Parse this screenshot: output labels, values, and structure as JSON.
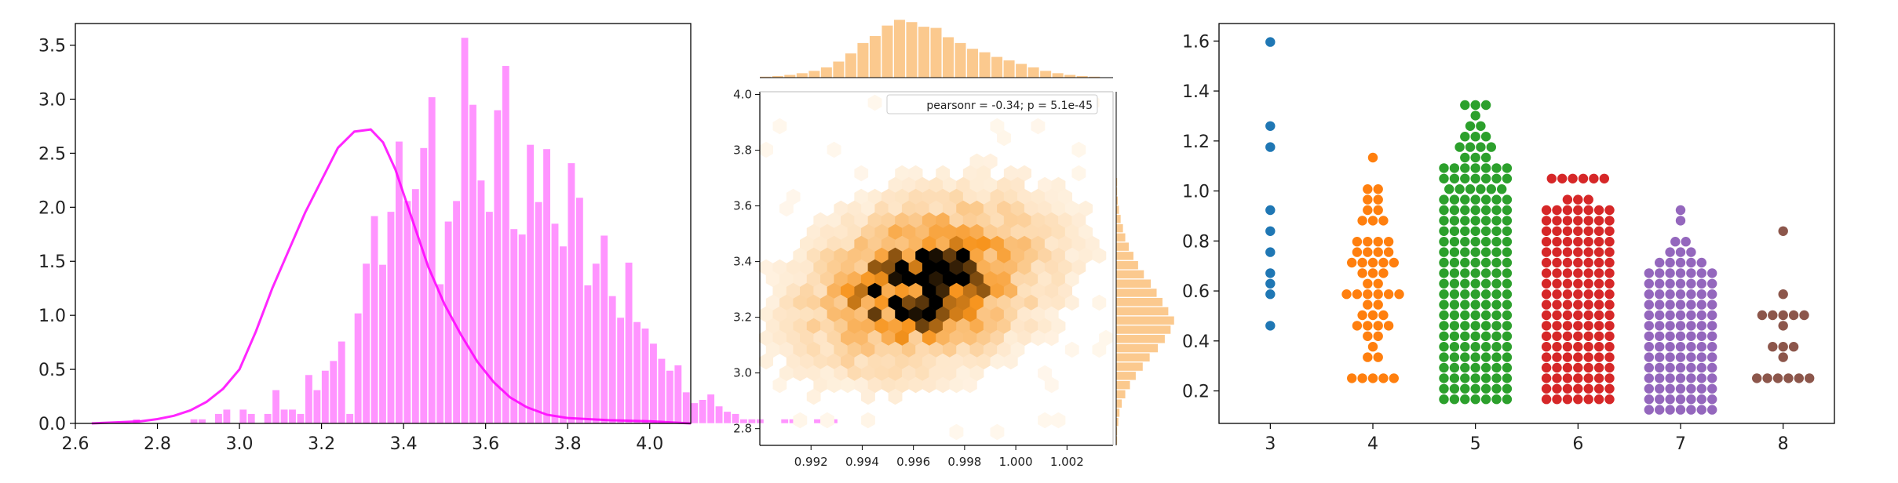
{
  "chart_data": [
    {
      "type": "bar",
      "subtype": "histogram-with-kde",
      "color": "#ff00ff",
      "xlim": [
        2.6,
        4.1
      ],
      "ylim": [
        0,
        3.7
      ],
      "xticks": [
        "2.6",
        "2.8",
        "3.0",
        "3.2",
        "3.4",
        "3.6",
        "3.8",
        "4.0"
      ],
      "yticks": [
        "0.0",
        "0.5",
        "1.0",
        "1.5",
        "2.0",
        "2.5",
        "3.0",
        "3.5"
      ],
      "bin_edges_start": 2.74,
      "bin_width": 0.02,
      "values": [
        0.04,
        0,
        0,
        0,
        0,
        0,
        0,
        0.04,
        0.04,
        0,
        0.09,
        0.13,
        0,
        0.13,
        0.09,
        0,
        0.09,
        0.31,
        0.13,
        0.13,
        0.09,
        0.45,
        0.31,
        0.49,
        0.58,
        0.76,
        0.09,
        1.02,
        1.48,
        1.92,
        1.47,
        1.96,
        2.61,
        2.06,
        2.17,
        2.55,
        3.02,
        1.29,
        1.87,
        2.06,
        3.57,
        2.95,
        2.25,
        1.96,
        2.9,
        3.31,
        1.8,
        1.75,
        2.58,
        2.05,
        2.54,
        1.85,
        1.64,
        2.41,
        2.09,
        1.28,
        1.48,
        1.74,
        1.18,
        0.98,
        1.49,
        0.94,
        0.88,
        0.74,
        0.6,
        0.49,
        0.54,
        0.29,
        0.19,
        0.22,
        0.27,
        0.16,
        0.11,
        0.09,
        0.04,
        0.04,
        0.04,
        0,
        0,
        0.04,
        0.04,
        0,
        0,
        0.04,
        0,
        0.04
      ],
      "kde": {
        "x": [
          2.64,
          2.7,
          2.76,
          2.8,
          2.84,
          2.88,
          2.92,
          2.96,
          3.0,
          3.04,
          3.08,
          3.12,
          3.16,
          3.2,
          3.24,
          3.28,
          3.32,
          3.35,
          3.38,
          3.42,
          3.46,
          3.5,
          3.54,
          3.58,
          3.62,
          3.66,
          3.7,
          3.75,
          3.8,
          3.9,
          4.0,
          4.1
        ],
        "y": [
          0.0,
          0.01,
          0.02,
          0.04,
          0.07,
          0.12,
          0.2,
          0.32,
          0.5,
          0.85,
          1.25,
          1.6,
          1.95,
          2.25,
          2.55,
          2.7,
          2.72,
          2.6,
          2.35,
          1.9,
          1.45,
          1.1,
          0.82,
          0.57,
          0.38,
          0.24,
          0.15,
          0.08,
          0.05,
          0.03,
          0.02,
          0.0
        ]
      }
    },
    {
      "type": "heatmap",
      "subtype": "hexbin-jointplot",
      "color": "#f7941d",
      "annotation": "pearsonr = -0.34; p = 5.1e-45",
      "xlim": [
        0.99,
        1.0038
      ],
      "ylim": [
        2.74,
        4.01
      ],
      "xticks": [
        "0.992",
        "0.994",
        "0.996",
        "0.998",
        "1.000",
        "1.002"
      ],
      "yticks": [
        "2.8",
        "3.0",
        "3.2",
        "3.4",
        "3.6",
        "3.8",
        "4.0"
      ],
      "center": [
        0.9965,
        3.32
      ],
      "spread": [
        0.0025,
        0.16
      ],
      "marginal_top": [
        0.02,
        0.03,
        0.05,
        0.08,
        0.12,
        0.18,
        0.28,
        0.42,
        0.6,
        0.72,
        0.9,
        1.0,
        0.96,
        0.88,
        0.86,
        0.7,
        0.6,
        0.5,
        0.44,
        0.36,
        0.3,
        0.24,
        0.18,
        0.12,
        0.08,
        0.05,
        0.03,
        0.02,
        0.01
      ],
      "marginal_right": [
        0.02,
        0.02,
        0.04,
        0.06,
        0.1,
        0.16,
        0.24,
        0.34,
        0.46,
        0.58,
        0.72,
        0.84,
        0.94,
        1.0,
        0.9,
        0.8,
        0.7,
        0.6,
        0.48,
        0.38,
        0.3,
        0.22,
        0.16,
        0.12,
        0.08,
        0.05,
        0.03,
        0.02,
        0.02,
        0.01
      ]
    },
    {
      "type": "scatter",
      "subtype": "swarmplot",
      "xlim": [
        2.5,
        8.5
      ],
      "ylim": [
        0.07,
        1.67
      ],
      "categories": [
        "3",
        "4",
        "5",
        "6",
        "7",
        "8"
      ],
      "yticks": [
        "0.2",
        "0.4",
        "0.6",
        "0.8",
        "1.0",
        "1.2",
        "1.4",
        "1.6"
      ],
      "series": [
        {
          "category": "3",
          "color": "#1f77b4",
          "count": 10,
          "min": 0.44,
          "max": 1.58,
          "median": 0.84
        },
        {
          "category": "4",
          "color": "#ff7f0e",
          "count": 53,
          "min": 0.23,
          "max": 1.13,
          "median": 0.67
        },
        {
          "category": "5",
          "color": "#2ca02c",
          "count": 681,
          "min": 0.18,
          "max": 1.33,
          "median": 0.58
        },
        {
          "category": "6",
          "color": "#d62728",
          "count": 638,
          "min": 0.16,
          "max": 1.04,
          "median": 0.49
        },
        {
          "category": "7",
          "color": "#9467bd",
          "count": 199,
          "min": 0.12,
          "max": 0.92,
          "median": 0.37
        },
        {
          "category": "8",
          "color": "#8c564b",
          "count": 18,
          "min": 0.26,
          "max": 0.86,
          "median": 0.37
        }
      ]
    }
  ]
}
